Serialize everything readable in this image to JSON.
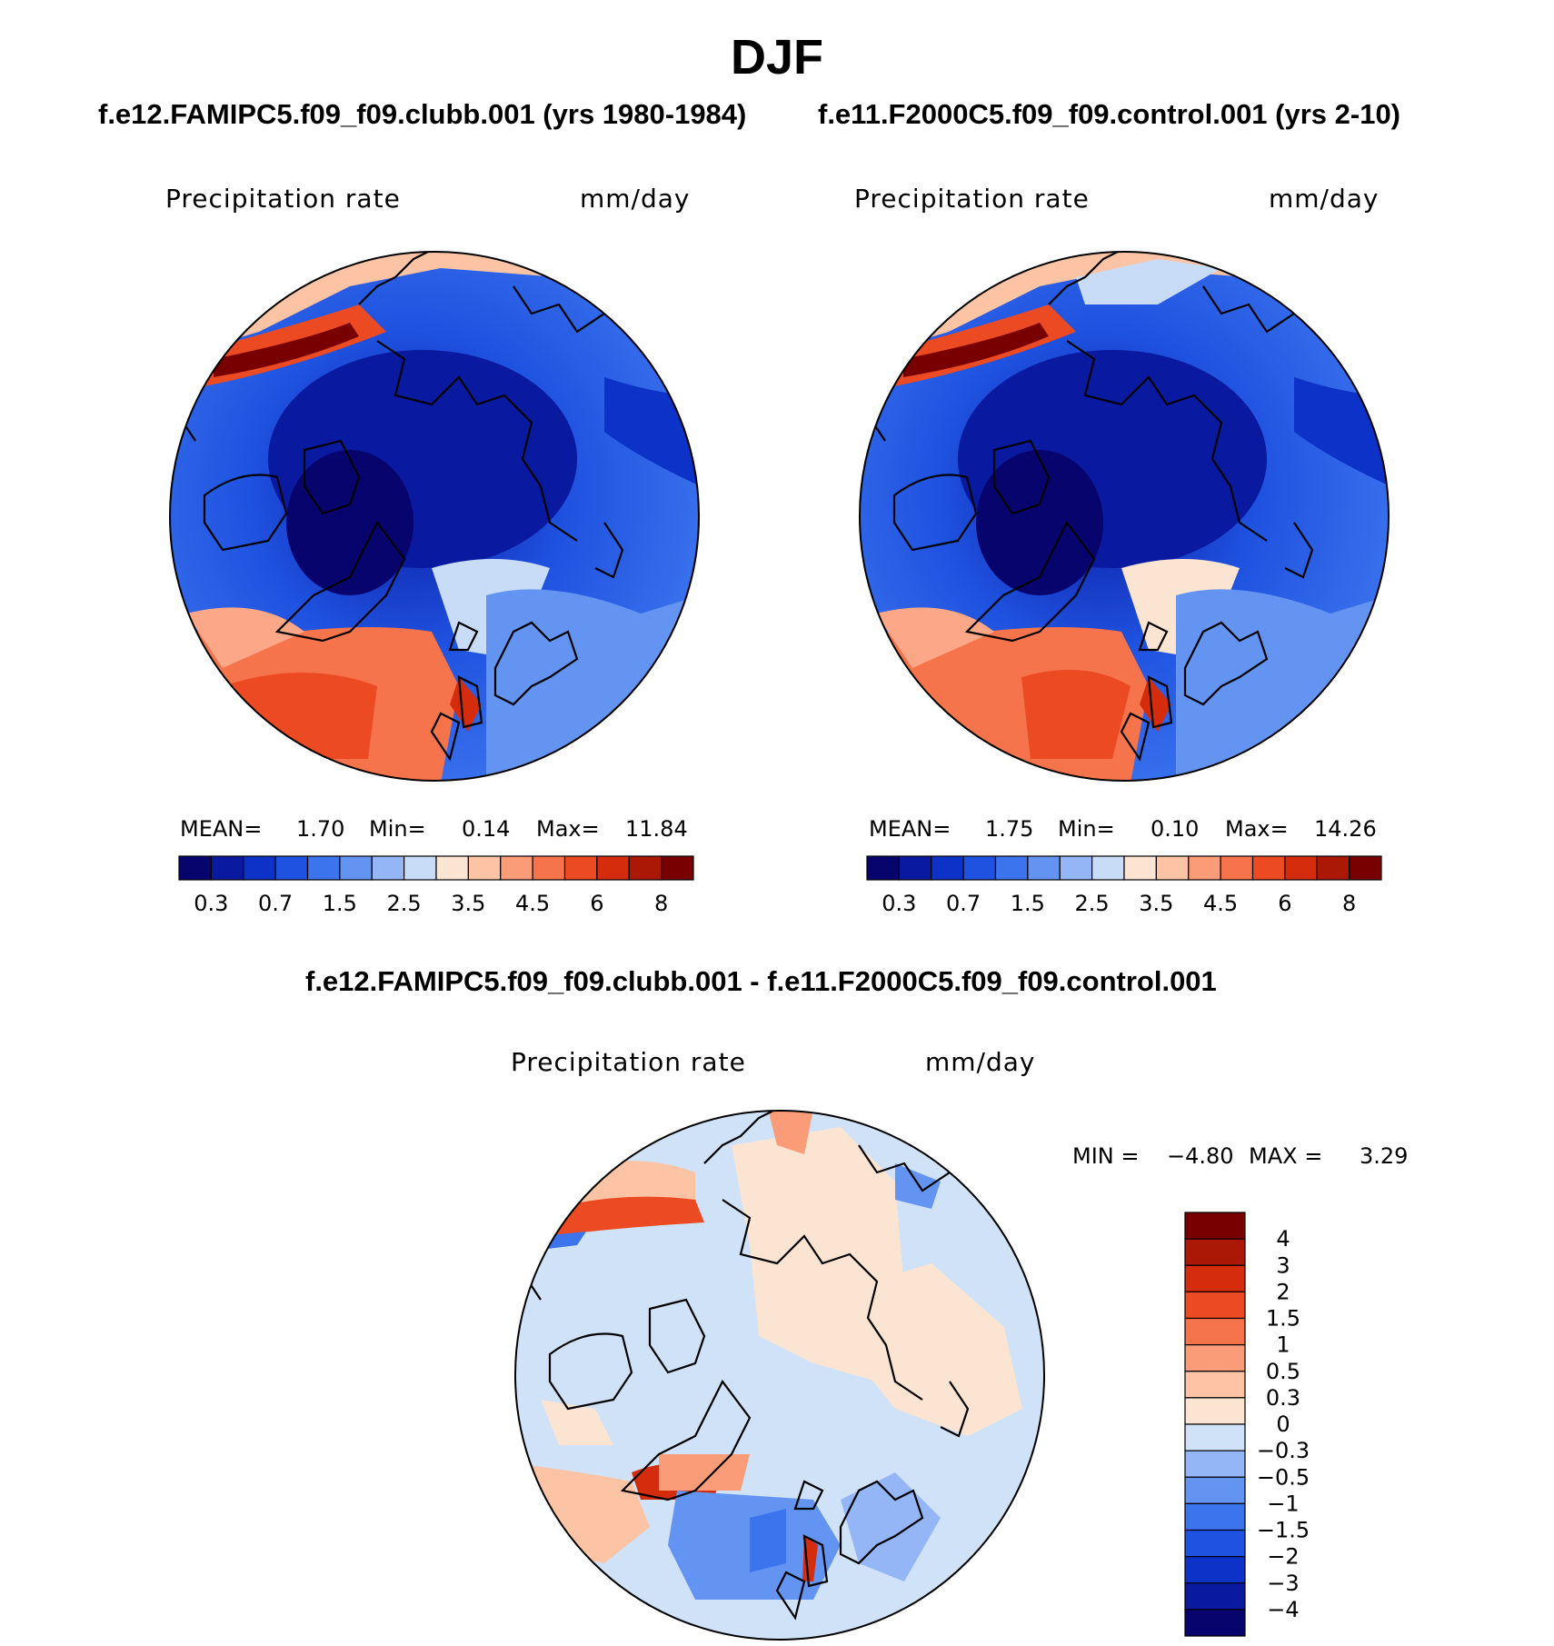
{
  "main_title": "DJF",
  "panel1": {
    "title": "f.e12.FAMIPC5.f09_f09.clubb.001 (yrs 1980-1984)",
    "var_label": "Precipitation  rate",
    "units": "mm/day",
    "stats": {
      "mean_label": "MEAN=",
      "mean": "1.70",
      "min_label": "Min=",
      "min": "0.14",
      "max_label": "Max=",
      "max": "11.84"
    }
  },
  "panel2": {
    "title": "f.e11.F2000C5.f09_f09.control.001 (yrs 2-10)",
    "var_label": "Precipitation  rate",
    "units": "mm/day",
    "stats": {
      "mean_label": "MEAN=",
      "mean": "1.75",
      "min_label": "Min=",
      "min": "0.10",
      "max_label": "Max=",
      "max": "14.26"
    }
  },
  "panel3": {
    "title": "f.e12.FAMIPC5.f09_f09.clubb.001 - f.e11.F2000C5.f09_f09.control.001",
    "var_label": "Precipitation  rate",
    "units": "mm/day",
    "stats": {
      "min_label": "MIN =",
      "min": "−4.80",
      "max_label": "MAX =",
      "max": "3.29"
    }
  },
  "colors": {
    "mean_scale": [
      "#08046e",
      "#0a1aa0",
      "#0d32c8",
      "#1f52e0",
      "#3c74ee",
      "#6494f2",
      "#94b6f6",
      "#c8dcf8",
      "#fce4d2",
      "#fcc4a4",
      "#fa9c78",
      "#f6744c",
      "#ec4a22",
      "#d42c0c",
      "#ac1806",
      "#780000"
    ],
    "diff_scale": [
      "#08046e",
      "#0a1aa0",
      "#0d32c8",
      "#1f52e0",
      "#3c74ee",
      "#6494f2",
      "#94b6f6",
      "#cfe2f8",
      "#fce4d2",
      "#fcc4a4",
      "#fa9c78",
      "#f6744c",
      "#ec4a22",
      "#d42c0c",
      "#ac1806",
      "#780000"
    ]
  },
  "chart_data": [
    {
      "type": "heatmap",
      "title": "f.e12.FAMIPC5.f09_f09.clubb.001 (yrs 1980-1984)",
      "variable": "Precipitation  rate",
      "units": "mm/day",
      "projection": "north polar stereographic",
      "mean": 1.7,
      "min": 0.14,
      "max": 11.84,
      "colorbar_labels": [
        "0.3",
        "0.7",
        "1.5",
        "2.5",
        "3.5",
        "4.5",
        "6",
        "8"
      ],
      "colorbar_levels": [
        0.2,
        0.3,
        0.5,
        0.7,
        1,
        1.5,
        2,
        2.5,
        3,
        3.5,
        4,
        4.5,
        5,
        6,
        7,
        8
      ]
    },
    {
      "type": "heatmap",
      "title": "f.e11.F2000C5.f09_f09.control.001 (yrs 2-10)",
      "variable": "Precipitation  rate",
      "units": "mm/day",
      "projection": "north polar stereographic",
      "mean": 1.75,
      "min": 0.1,
      "max": 14.26,
      "colorbar_labels": [
        "0.3",
        "0.7",
        "1.5",
        "2.5",
        "3.5",
        "4.5",
        "6",
        "8"
      ],
      "colorbar_levels": [
        0.2,
        0.3,
        0.5,
        0.7,
        1,
        1.5,
        2,
        2.5,
        3,
        3.5,
        4,
        4.5,
        5,
        6,
        7,
        8
      ]
    },
    {
      "type": "heatmap",
      "title": "f.e12.FAMIPC5.f09_f09.clubb.001 - f.e11.F2000C5.f09_f09.control.001",
      "variable": "Precipitation  rate",
      "units": "mm/day",
      "projection": "north polar stereographic",
      "min": -4.8,
      "max": 3.29,
      "colorbar_labels": [
        "4",
        "3",
        "2",
        "1.5",
        "1",
        "0.5",
        "0.3",
        "0",
        "−0.3",
        "−0.5",
        "−1",
        "−1.5",
        "−2",
        "−3",
        "−4"
      ]
    }
  ]
}
